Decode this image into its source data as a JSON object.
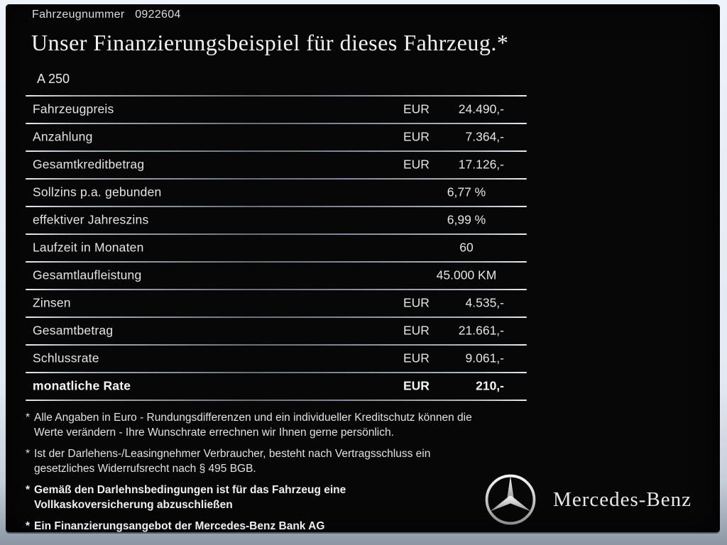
{
  "header": {
    "vehicle_number_label": "Fahrzeugnummer",
    "vehicle_number": "0922604",
    "title": "Unser Finanzierungsbeispiel für dieses Fahrzeug.*",
    "model": "A 250"
  },
  "table": {
    "rows": [
      {
        "label": "Fahrzeugpreis",
        "currency": "EUR",
        "value": "24.490,-",
        "bold": false
      },
      {
        "label": "Anzahlung",
        "currency": "EUR",
        "value": "7.364,-",
        "bold": false
      },
      {
        "label": "Gesamtkreditbetrag",
        "currency": "EUR",
        "value": "17.126,-",
        "bold": false
      },
      {
        "label": "Sollzins p.a. gebunden",
        "currency": "",
        "value": "6,77 %",
        "bold": false
      },
      {
        "label": "effektiver Jahreszins",
        "currency": "",
        "value": "6,99 %",
        "bold": false
      },
      {
        "label": "Laufzeit in Monaten",
        "currency": "",
        "value": "60",
        "bold": false
      },
      {
        "label": "Gesamtlaufleistung",
        "currency": "",
        "value": "45.000 KM",
        "bold": false
      },
      {
        "label": "Zinsen",
        "currency": "EUR",
        "value": "4.535,-",
        "bold": false
      },
      {
        "label": "Gesamtbetrag",
        "currency": "EUR",
        "value": "21.661,-",
        "bold": false
      },
      {
        "label": "Schlussrate",
        "currency": "EUR",
        "value": "9.061,-",
        "bold": false
      },
      {
        "label": "monatliche Rate",
        "currency": "EUR",
        "value": "210,-",
        "bold": true
      }
    ]
  },
  "footnotes": [
    {
      "marker": "*",
      "text": "Alle Angaben in Euro - Rundungsdifferenzen und ein individueller Kreditschutz können die\nWerte verändern - Ihre Wunschrate errechnen wir Ihnen gerne persönlich.",
      "bold": false
    },
    {
      "marker": "*",
      "text": "Ist der Darlehens-/Leasingnehmer Verbraucher, besteht nach Vertragsschluss ein\ngesetzliches Widerrufsrecht nach § 495 BGB.",
      "bold": false
    },
    {
      "marker": "*",
      "text": "Gemäß den Darlehnsbedingungen ist für das Fahrzeug eine\nVollkaskoversicherung abzuschließen",
      "bold": true
    },
    {
      "marker": "*",
      "text": "Ein Finanzierungsangebot der Mercedes-Benz Bank AG",
      "bold": true
    }
  ],
  "brand": {
    "wordmark": "Mercedes-Benz"
  },
  "colors": {
    "background": "#070707",
    "frame_light": "#eef2f9",
    "frame_dark": "#8d97a4",
    "text": "#e4e4e4",
    "separator": "#7b828d"
  }
}
